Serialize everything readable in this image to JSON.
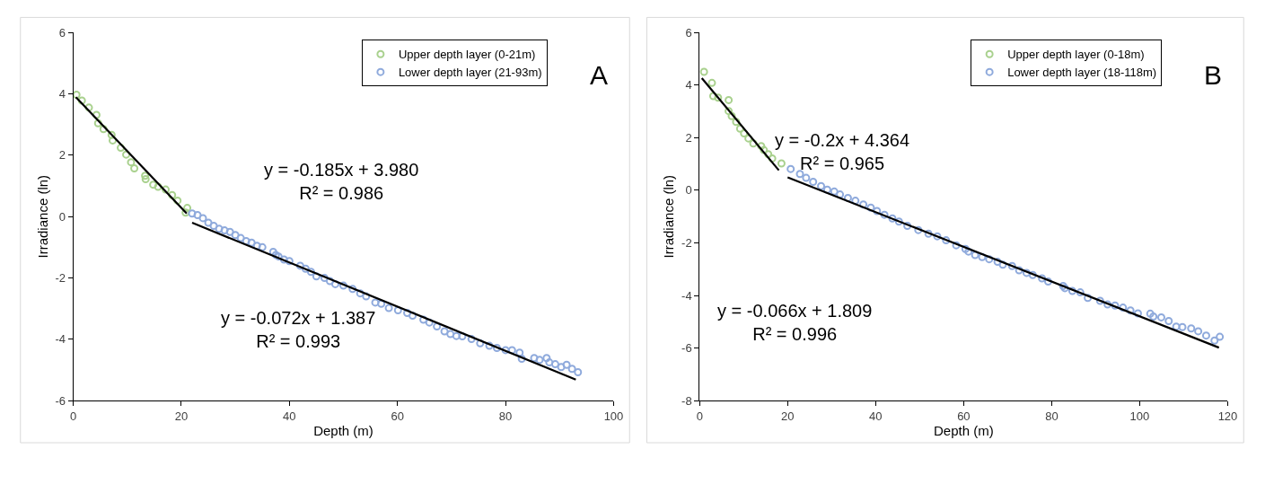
{
  "chart_data": [
    {
      "type": "scatter",
      "xlabel": "Depth (m)",
      "ylabel": "Irradiance (ln)",
      "xlim": [
        0,
        100
      ],
      "xticks": [
        0,
        20,
        40,
        60,
        80,
        100
      ],
      "ylim": [
        -6,
        6
      ],
      "yticks": [
        -6,
        -4,
        -2,
        0,
        2,
        4,
        6
      ],
      "grid": false,
      "legend": "top right",
      "marker": "circle",
      "annotations": [
        "A",
        "y = -0.185x + 3.980\nR² = 0.986",
        "y = -0.072x + 1.387\nR² = 0.993"
      ],
      "series": [
        {
          "name": "Upper depth layer (0-21m)",
          "color": "#a9d18e",
          "x": [
            0.6,
            1.6,
            2.9,
            4.3,
            4.6,
            5.6,
            7.1,
            7.3,
            8.8,
            9.8,
            10.7,
            11.3,
            13.3,
            13.4,
            14.8,
            15.7,
            17.1,
            18.3,
            19.3,
            21.1,
            20.8
          ],
          "values": [
            3.97,
            3.78,
            3.55,
            3.31,
            3.04,
            2.85,
            2.66,
            2.48,
            2.24,
            2.02,
            1.77,
            1.57,
            1.33,
            1.22,
            1.04,
            0.97,
            0.88,
            0.7,
            0.52,
            0.28,
            0.13
          ]
        },
        {
          "name": "Lower depth layer (21-93m)",
          "color": "#8faadc",
          "x": [
            22,
            23,
            24,
            25,
            26,
            27,
            28,
            29,
            30,
            31,
            32,
            33,
            34,
            35,
            37,
            37.5,
            38,
            39,
            40,
            42,
            43,
            44,
            45,
            46.5,
            47.5,
            48.5,
            50,
            51.7,
            53.1,
            54.2,
            55.9,
            57,
            58.4,
            60.1,
            61.8,
            62.8,
            64.8,
            65.9,
            67.3,
            68.7,
            69.8,
            70.9,
            72,
            73.7,
            75.3,
            77,
            78.4,
            80,
            81.2,
            82.6,
            83,
            85.3,
            86.3,
            87.6,
            88.1,
            89.2,
            90.3,
            91.3,
            92.3,
            93.4
          ],
          "values": [
            0.1,
            0.05,
            -0.05,
            -0.2,
            -0.3,
            -0.4,
            -0.45,
            -0.5,
            -0.6,
            -0.7,
            -0.8,
            -0.85,
            -0.95,
            -1.0,
            -1.15,
            -1.25,
            -1.3,
            -1.4,
            -1.45,
            -1.6,
            -1.7,
            -1.8,
            -1.95,
            -2.0,
            -2.1,
            -2.2,
            -2.25,
            -2.36,
            -2.5,
            -2.6,
            -2.8,
            -2.84,
            -2.98,
            -3.05,
            -3.14,
            -3.23,
            -3.36,
            -3.45,
            -3.58,
            -3.74,
            -3.83,
            -3.89,
            -3.9,
            -3.99,
            -4.13,
            -4.21,
            -4.28,
            -4.35,
            -4.35,
            -4.43,
            -4.63,
            -4.61,
            -4.67,
            -4.61,
            -4.75,
            -4.81,
            -4.9,
            -4.83,
            -4.96,
            -5.07
          ]
        },
        {
          "type": "line",
          "color": "#000000",
          "marker": "none",
          "x": [
            0.5,
            21
          ],
          "values": [
            3.89,
            0.1
          ]
        },
        {
          "type": "line",
          "color": "#000000",
          "marker": "none",
          "x": [
            22,
            93
          ],
          "values": [
            -0.2,
            -5.31
          ]
        }
      ]
    },
    {
      "type": "scatter",
      "xlabel": "Depth (m)",
      "ylabel": "Irradiance (ln)",
      "xlim": [
        0,
        120
      ],
      "xticks": [
        0,
        20,
        40,
        60,
        80,
        100,
        120
      ],
      "ylim": [
        -8,
        6
      ],
      "yticks": [
        -8,
        -6,
        -4,
        -2,
        0,
        2,
        4,
        6
      ],
      "grid": false,
      "legend": "top right",
      "marker": "circle",
      "annotations": [
        "B",
        "y = -0.2x + 4.364\nR² = 0.965",
        "y = -0.066x + 1.809\nR² = 0.996"
      ],
      "series": [
        {
          "name": "Upper depth layer (0-18m)",
          "color": "#a9d18e",
          "x": [
            1.0,
            2.8,
            3.1,
            4.2,
            6.6,
            6.6,
            7.3,
            8.3,
            9.2,
            10.1,
            11.1,
            12.2,
            14.0,
            14.6,
            15.6,
            16.5,
            18.6
          ],
          "values": [
            4.5,
            4.08,
            3.58,
            3.52,
            3.43,
            3.01,
            2.82,
            2.6,
            2.34,
            2.16,
            1.97,
            1.78,
            1.68,
            1.53,
            1.37,
            1.21,
            1.02
          ]
        },
        {
          "name": "Lower depth layer (18-118m)",
          "color": "#8faadc",
          "x": [
            20.7,
            22.8,
            24.2,
            25.8,
            27.6,
            29,
            30.6,
            31.9,
            33.7,
            35.4,
            37.2,
            38.9,
            40.3,
            42,
            43.8,
            45.3,
            47.2,
            49.7,
            52,
            54,
            56,
            58.3,
            60.4,
            61.1,
            62.6,
            64.2,
            65.8,
            67.7,
            68.9,
            71,
            72.6,
            74.3,
            75.7,
            77.8,
            79.2,
            82.6,
            83,
            84.7,
            86.5,
            88.2,
            91,
            92.7,
            94.4,
            96.2,
            97.9,
            99.6,
            102.4,
            103.1,
            104.9,
            106.6,
            108.3,
            109.7,
            111.7,
            113.3,
            115.1,
            117,
            118.2
          ],
          "values": [
            0.81,
            0.62,
            0.47,
            0.32,
            0.16,
            0.02,
            -0.05,
            -0.16,
            -0.29,
            -0.4,
            -0.54,
            -0.66,
            -0.79,
            -0.93,
            -1.07,
            -1.19,
            -1.35,
            -1.51,
            -1.65,
            -1.75,
            -1.9,
            -2.09,
            -2.23,
            -2.33,
            -2.46,
            -2.54,
            -2.62,
            -2.72,
            -2.83,
            -2.88,
            -3.04,
            -3.14,
            -3.22,
            -3.35,
            -3.47,
            -3.64,
            -3.72,
            -3.83,
            -3.88,
            -4.09,
            -4.2,
            -4.34,
            -4.38,
            -4.46,
            -4.57,
            -4.68,
            -4.69,
            -4.8,
            -4.83,
            -4.97,
            -5.18,
            -5.2,
            -5.25,
            -5.36,
            -5.52,
            -5.71,
            -5.57
          ]
        },
        {
          "type": "line",
          "color": "#000000",
          "marker": "none",
          "x": [
            0.5,
            18
          ],
          "values": [
            4.26,
            0.76
          ]
        },
        {
          "type": "line",
          "color": "#000000",
          "marker": "none",
          "x": [
            20,
            118
          ],
          "values": [
            0.49,
            -5.98
          ]
        }
      ]
    }
  ]
}
